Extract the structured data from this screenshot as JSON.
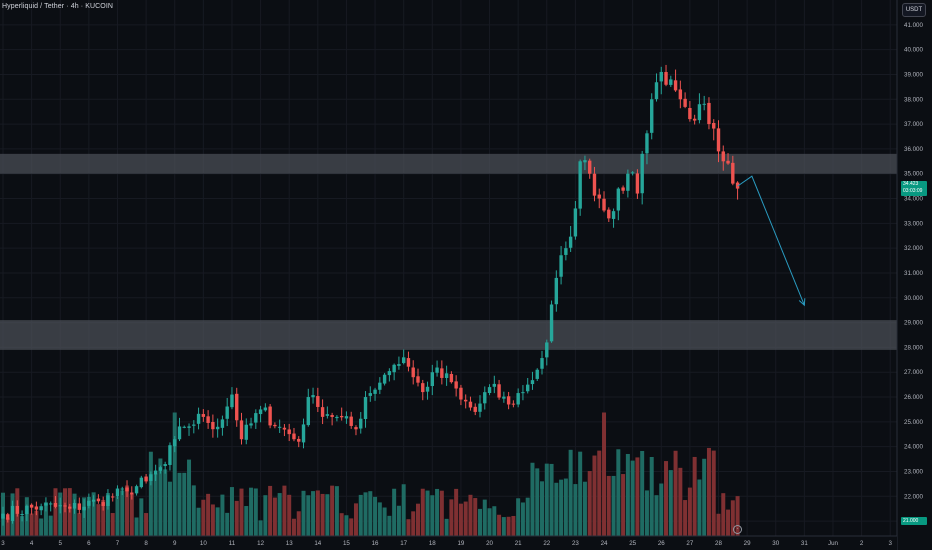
{
  "header": {
    "title": "Hyperliquid / Tether · 4h · KUCOIN",
    "currency_button": "USDT"
  },
  "labels": {
    "current_price": "34.423",
    "countdown": "03:03:09",
    "bottom_tag": "21.000"
  },
  "colors": {
    "background": "#0b0e13",
    "up": "#26a69a",
    "down": "#ef5350",
    "volume_up": "#1f6b63",
    "volume_down": "#7f3032",
    "zone": "#4a4d55",
    "arrow": "#2a9bc0",
    "grid": "#171a22"
  },
  "chart_data": {
    "type": "candlestick",
    "symbol": "Hyperliquid / Tether",
    "timeframe": "4h",
    "exchange": "KUCOIN",
    "y_axis_ticks": [
      "41.000",
      "40.000",
      "39.000",
      "38.000",
      "37.000",
      "36.000",
      "35.000",
      "34.000",
      "33.000",
      "32.000",
      "31.000",
      "30.000",
      "29.000",
      "28.000",
      "27.000",
      "26.000",
      "25.000",
      "24.000",
      "23.000",
      "22.000",
      "21.000"
    ],
    "ylim": [
      20.4,
      42.0
    ],
    "x_axis_ticks": [
      {
        "label": "3",
        "index": 0
      },
      {
        "label": "4",
        "index": 6
      },
      {
        "label": "5",
        "index": 12
      },
      {
        "label": "6",
        "index": 18
      },
      {
        "label": "7",
        "index": 24
      },
      {
        "label": "8",
        "index": 30
      },
      {
        "label": "9",
        "index": 36
      },
      {
        "label": "10",
        "index": 42
      },
      {
        "label": "11",
        "index": 48
      },
      {
        "label": "12",
        "index": 54
      },
      {
        "label": "13",
        "index": 60
      },
      {
        "label": "14",
        "index": 66
      },
      {
        "label": "15",
        "index": 72
      },
      {
        "label": "16",
        "index": 78
      },
      {
        "label": "17",
        "index": 84
      },
      {
        "label": "18",
        "index": 90
      },
      {
        "label": "19",
        "index": 96
      },
      {
        "label": "20",
        "index": 102
      },
      {
        "label": "21",
        "index": 108
      },
      {
        "label": "22",
        "index": 114
      },
      {
        "label": "23",
        "index": 120
      },
      {
        "label": "24",
        "index": 126
      },
      {
        "label": "25",
        "index": 132
      },
      {
        "label": "26",
        "index": 138
      },
      {
        "label": "27",
        "index": 144
      },
      {
        "label": "28",
        "index": 150
      },
      {
        "label": "29",
        "index": 156
      },
      {
        "label": "30",
        "index": 162
      },
      {
        "label": "31",
        "index": 168
      },
      {
        "label": "Jun",
        "index": 174
      },
      {
        "label": "2",
        "index": 180
      },
      {
        "label": "3",
        "index": 186
      }
    ],
    "close_anchors": [
      [
        0,
        21.3
      ],
      [
        8,
        21.6
      ],
      [
        14,
        21.5
      ],
      [
        20,
        21.8
      ],
      [
        26,
        22.2
      ],
      [
        30,
        22.6
      ],
      [
        34,
        23.3
      ],
      [
        36,
        24.3
      ],
      [
        38,
        24.8
      ],
      [
        42,
        25.2
      ],
      [
        45,
        24.8
      ],
      [
        48,
        26.1
      ],
      [
        50,
        24.3
      ],
      [
        54,
        25.5
      ],
      [
        58,
        24.8
      ],
      [
        62,
        24.2
      ],
      [
        64,
        26.0
      ],
      [
        66,
        25.6
      ],
      [
        70,
        25.2
      ],
      [
        74,
        24.7
      ],
      [
        76,
        26.0
      ],
      [
        80,
        26.9
      ],
      [
        82,
        27.3
      ],
      [
        84,
        27.6
      ],
      [
        86,
        26.8
      ],
      [
        88,
        26.2
      ],
      [
        90,
        27.0
      ],
      [
        94,
        26.6
      ],
      [
        96,
        25.9
      ],
      [
        99,
        25.4
      ],
      [
        102,
        26.4
      ],
      [
        106,
        25.7
      ],
      [
        110,
        26.5
      ],
      [
        112,
        27.1
      ],
      [
        114,
        28.2
      ],
      [
        116,
        30.8
      ],
      [
        118,
        32.0
      ],
      [
        120,
        33.6
      ],
      [
        121,
        35.5
      ],
      [
        123,
        35.0
      ],
      [
        125,
        34.0
      ],
      [
        127,
        33.2
      ],
      [
        129,
        34.4
      ],
      [
        131,
        35.0
      ],
      [
        133,
        34.2
      ],
      [
        134,
        35.8
      ],
      [
        136,
        38.0
      ],
      [
        138,
        39.1
      ],
      [
        140,
        38.8
      ],
      [
        142,
        38.0
      ],
      [
        144,
        37.2
      ],
      [
        146,
        37.8
      ],
      [
        148,
        37.0
      ],
      [
        150,
        35.9
      ],
      [
        151,
        35.5
      ],
      [
        153,
        34.6
      ],
      [
        154,
        34.4
      ]
    ],
    "num_candles": 155,
    "bar_spacing_px": 4.77,
    "volume_range": [
      0.0,
      1.0
    ],
    "zones": [
      {
        "name": "resistance",
        "low": 35.0,
        "high": 35.8
      },
      {
        "name": "support",
        "low": 27.9,
        "high": 29.1
      }
    ],
    "projection_arrow": [
      {
        "index": 154,
        "price": 34.5
      },
      {
        "index": 157,
        "price": 34.9
      },
      {
        "index": 168,
        "price": 29.7
      }
    ],
    "last_price": 34.423
  }
}
